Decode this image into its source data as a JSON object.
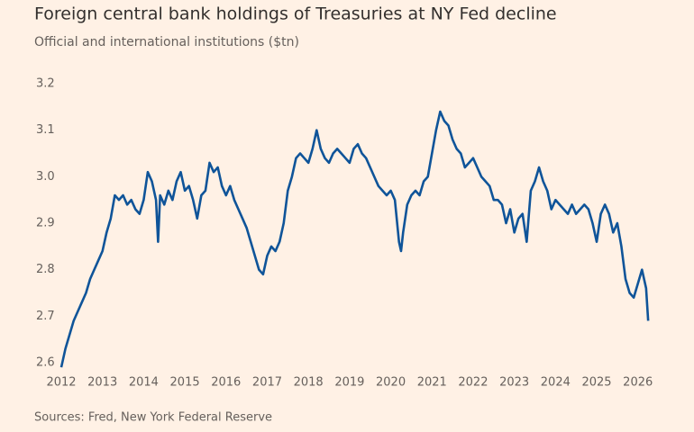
{
  "chart_data": {
    "type": "line",
    "title": "Foreign central bank holdings of Treasuries at NY Fed decline",
    "subtitle": "Official and international institutions ($tn)",
    "source": "Sources: Fred, New York Federal Reserve",
    "xlim": [
      2012,
      2026.4
    ],
    "xticks": [
      2012,
      2013,
      2014,
      2015,
      2016,
      2017,
      2018,
      2019,
      2020,
      2021,
      2022,
      2023,
      2024,
      2025,
      2026
    ],
    "ylim": [
      2.58,
      3.22
    ],
    "yticks": [
      2.6,
      2.7,
      2.8,
      2.9,
      {
        "value": 3,
        "label": "3.0"
      },
      3.1,
      3.2
    ],
    "grid": false,
    "x": [
      2012.0,
      2012.1,
      2012.2,
      2012.3,
      2012.4,
      2012.5,
      2012.6,
      2012.7,
      2012.8,
      2012.9,
      2013.0,
      2013.1,
      2013.2,
      2013.3,
      2013.4,
      2013.5,
      2013.6,
      2013.7,
      2013.8,
      2013.9,
      2014.0,
      2014.1,
      2014.2,
      2014.3,
      2014.35,
      2014.4,
      2014.5,
      2014.6,
      2014.7,
      2014.8,
      2014.9,
      2015.0,
      2015.1,
      2015.2,
      2015.3,
      2015.4,
      2015.5,
      2015.6,
      2015.7,
      2015.8,
      2015.9,
      2016.0,
      2016.1,
      2016.2,
      2016.3,
      2016.4,
      2016.5,
      2016.6,
      2016.7,
      2016.8,
      2016.9,
      2017.0,
      2017.1,
      2017.2,
      2017.3,
      2017.4,
      2017.5,
      2017.6,
      2017.7,
      2017.8,
      2017.9,
      2018.0,
      2018.1,
      2018.2,
      2018.3,
      2018.4,
      2018.5,
      2018.6,
      2018.7,
      2018.8,
      2018.9,
      2019.0,
      2019.1,
      2019.2,
      2019.3,
      2019.4,
      2019.5,
      2019.6,
      2019.7,
      2019.8,
      2019.9,
      2020.0,
      2020.1,
      2020.2,
      2020.25,
      2020.3,
      2020.4,
      2020.5,
      2020.6,
      2020.7,
      2020.8,
      2020.9,
      2021.0,
      2021.1,
      2021.2,
      2021.3,
      2021.4,
      2021.5,
      2021.6,
      2021.7,
      2021.8,
      2021.9,
      2022.0,
      2022.1,
      2022.2,
      2022.3,
      2022.4,
      2022.5,
      2022.6,
      2022.7,
      2022.8,
      2022.9,
      2023.0,
      2023.1,
      2023.2,
      2023.3,
      2023.4,
      2023.5,
      2023.6,
      2023.7,
      2023.8,
      2023.9,
      2024.0,
      2024.1,
      2024.2,
      2024.3,
      2024.4,
      2024.5,
      2024.6,
      2024.7,
      2024.8,
      2024.9,
      2025.0,
      2025.1,
      2025.2,
      2025.3,
      2025.4,
      2025.5,
      2025.6,
      2025.7,
      2025.8,
      2025.9,
      2026.0,
      2026.1,
      2026.2,
      2026.25
    ],
    "series": [
      {
        "color": "#0f5499",
        "values": [
          2.59,
          2.63,
          2.66,
          2.69,
          2.71,
          2.73,
          2.75,
          2.78,
          2.8,
          2.82,
          2.84,
          2.88,
          2.91,
          2.96,
          2.95,
          2.96,
          2.94,
          2.95,
          2.93,
          2.92,
          2.95,
          3.01,
          2.99,
          2.95,
          2.86,
          2.96,
          2.94,
          2.97,
          2.95,
          2.99,
          3.01,
          2.97,
          2.98,
          2.95,
          2.91,
          2.96,
          2.97,
          3.03,
          3.01,
          3.02,
          2.98,
          2.96,
          2.98,
          2.95,
          2.93,
          2.91,
          2.89,
          2.86,
          2.83,
          2.8,
          2.79,
          2.83,
          2.85,
          2.84,
          2.86,
          2.9,
          2.97,
          3.0,
          3.04,
          3.05,
          3.04,
          3.03,
          3.06,
          3.1,
          3.06,
          3.04,
          3.03,
          3.05,
          3.06,
          3.05,
          3.04,
          3.03,
          3.06,
          3.07,
          3.05,
          3.04,
          3.02,
          3.0,
          2.98,
          2.97,
          2.96,
          2.97,
          2.95,
          2.86,
          2.84,
          2.88,
          2.94,
          2.96,
          2.97,
          2.96,
          2.99,
          3.0,
          3.05,
          3.1,
          3.14,
          3.12,
          3.11,
          3.08,
          3.06,
          3.05,
          3.02,
          3.03,
          3.04,
          3.02,
          3.0,
          2.99,
          2.98,
          2.95,
          2.95,
          2.94,
          2.9,
          2.93,
          2.88,
          2.91,
          2.92,
          2.86,
          2.97,
          2.99,
          3.02,
          2.99,
          2.97,
          2.93,
          2.95,
          2.94,
          2.93,
          2.92,
          2.94,
          2.92,
          2.93,
          2.94,
          2.93,
          2.9,
          2.86,
          2.92,
          2.94,
          2.92,
          2.88,
          2.9,
          2.85,
          2.78,
          2.75,
          2.74,
          2.77,
          2.8,
          2.76,
          2.69
        ]
      }
    ]
  }
}
